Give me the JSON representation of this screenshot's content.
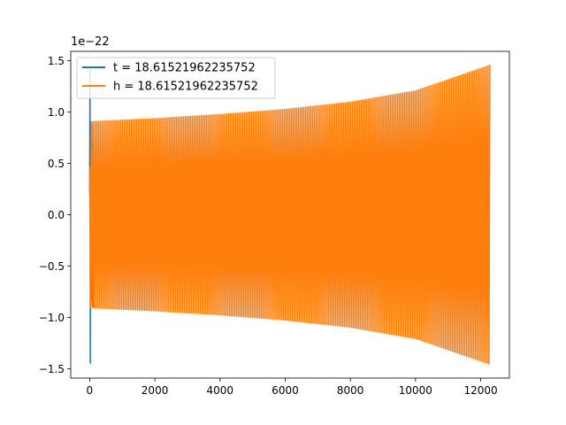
{
  "chart_data": {
    "type": "line",
    "title": "",
    "xlabel": "",
    "ylabel": "",
    "y_offset_label": "1e−22",
    "xlim": [
      -580,
      12880
    ],
    "ylim": [
      -1.59,
      1.59
    ],
    "x_ticks": [
      0,
      2000,
      4000,
      6000,
      8000,
      10000,
      12000
    ],
    "x_tick_labels": [
      "0",
      "2000",
      "4000",
      "6000",
      "8000",
      "10000",
      "12000"
    ],
    "y_ticks": [
      -1.5,
      -1.0,
      -0.5,
      0.0,
      0.5,
      1.0,
      1.5
    ],
    "y_tick_labels": [
      "−1.5",
      "−1.0",
      "−0.5",
      "0.0",
      "0.5",
      "1.0",
      "1.5"
    ],
    "grid": false,
    "legend_position": "upper-left",
    "series": [
      {
        "name": "t = 18.61521962235752",
        "color": "#1f77b4",
        "x": [
          0,
          10,
          20,
          30,
          40,
          60,
          80,
          100,
          120
        ],
        "y": [
          0.2,
          1.42,
          -1.45,
          0.9,
          -0.85,
          0.7,
          -0.9,
          0.88,
          -0.9
        ]
      },
      {
        "name": "h = 18.61521962235752",
        "color": "#ff7f0e",
        "x_start": 0,
        "x_end": 12280,
        "envelope_x": [
          0,
          2000,
          4000,
          6000,
          8000,
          10000,
          12280
        ],
        "envelope_amplitude": [
          0.91,
          0.94,
          0.98,
          1.03,
          1.1,
          1.21,
          1.46
        ],
        "initial_amplitude": 0.47,
        "cycles": 230
      }
    ]
  }
}
